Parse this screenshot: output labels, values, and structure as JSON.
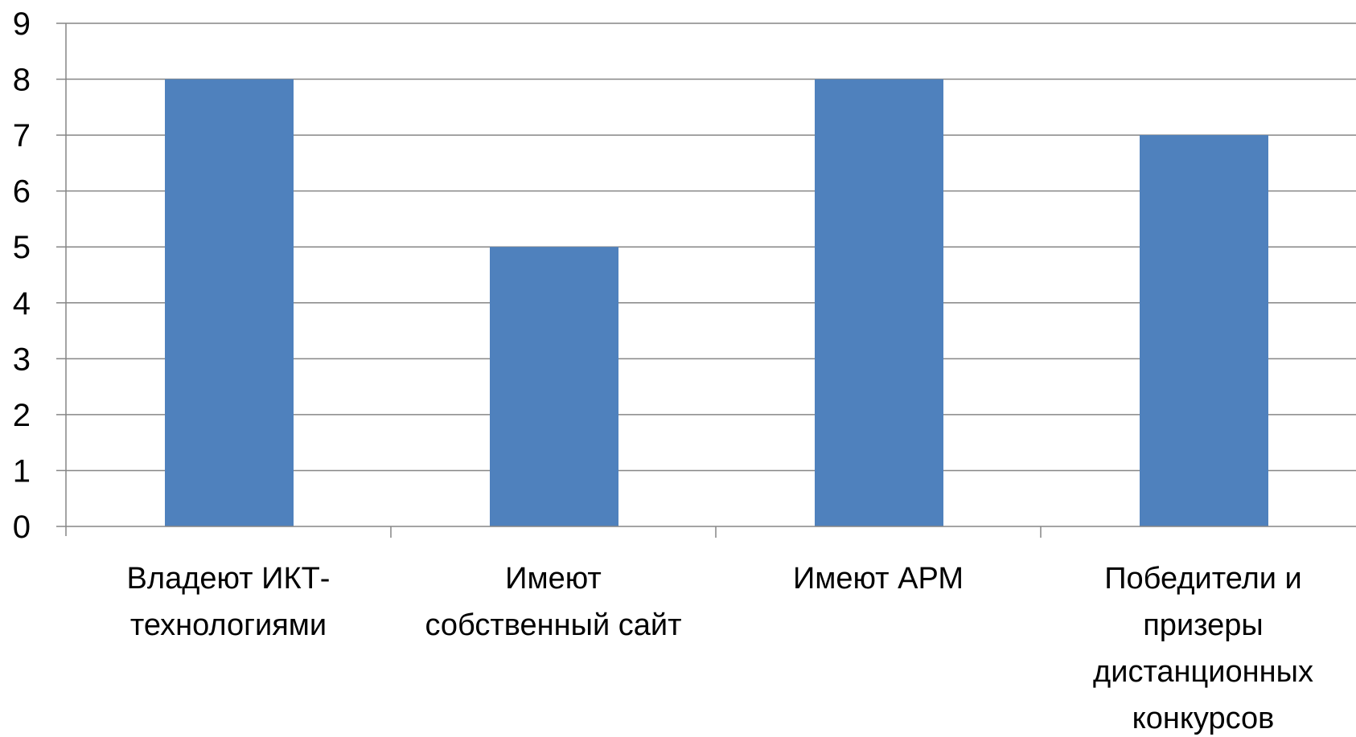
{
  "chart_data": {
    "type": "bar",
    "categories": [
      [
        "Владеют ИКТ-",
        "технологиями"
      ],
      [
        "Имеют",
        "собственный сайт"
      ],
      [
        "Имеют АРМ"
      ],
      [
        "Победители и",
        "призеры",
        "дистанционных",
        "конкурсов"
      ]
    ],
    "series": [
      {
        "values": [
          8,
          5,
          8,
          7
        ]
      }
    ],
    "ylim": [
      0,
      9
    ],
    "yticks": [
      0,
      1,
      2,
      3,
      4,
      5,
      6,
      7,
      8,
      9
    ],
    "grid": true,
    "legend": "none",
    "colors": {
      "bar": "#4f81bd",
      "grid": "#868686",
      "axis": "#868686"
    }
  }
}
